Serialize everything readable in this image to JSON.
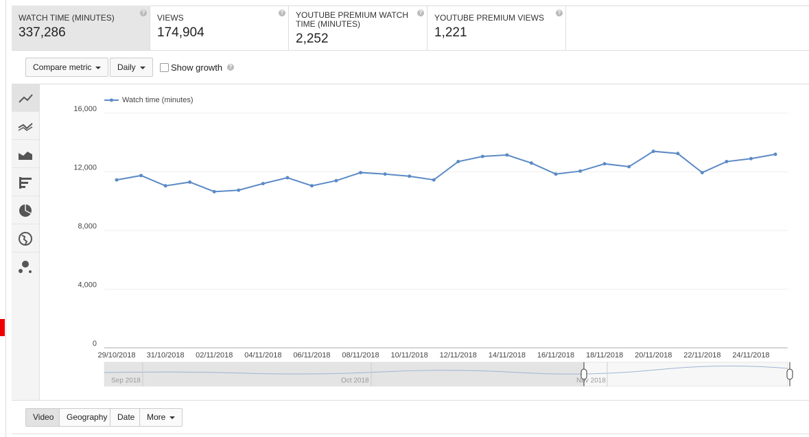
{
  "metrics": [
    {
      "label": "WATCH TIME (MINUTES)",
      "value": "337,286"
    },
    {
      "label": "VIEWS",
      "value": "174,904"
    },
    {
      "label": "YOUTUBE PREMIUM WATCH TIME (MINUTES)",
      "value": "2,252"
    },
    {
      "label": "YOUTUBE PREMIUM VIEWS",
      "value": "1,221"
    }
  ],
  "controls": {
    "compare_metric": "Compare metric",
    "interval": "Daily",
    "show_growth": "Show growth"
  },
  "chart_data": {
    "type": "line",
    "categories": [
      "29/10/2018",
      null,
      "31/10/2018",
      null,
      "02/11/2018",
      null,
      "04/11/2018",
      null,
      "06/11/2018",
      null,
      "08/11/2018",
      null,
      "10/11/2018",
      null,
      "12/11/2018",
      null,
      "14/11/2018",
      null,
      "16/11/2018",
      null,
      "18/11/2018",
      null,
      "20/11/2018",
      null,
      "22/11/2018",
      null,
      "24/11/2018",
      null
    ],
    "series": [
      {
        "name": "Watch time (minutes)",
        "color": "#5b8ac6",
        "values": [
          11450,
          11750,
          11050,
          11300,
          10650,
          10750,
          11200,
          11600,
          11050,
          11400,
          11950,
          11850,
          11700,
          11450,
          12700,
          13050,
          13150,
          12600,
          11850,
          12050,
          12550,
          12350,
          13400,
          13250,
          11950,
          12700,
          12900,
          13200
        ]
      }
    ],
    "ylim": [
      0,
      16000
    ],
    "yticks": [
      0,
      {
        "value": 4000,
        "label": "4,000"
      },
      {
        "value": 8000,
        "label": "8,000"
      },
      {
        "value": 12000,
        "label": "12,000"
      },
      {
        "value": 16000,
        "label": "16,000"
      }
    ],
    "grid": true,
    "navigator_labels": [
      "Sep 2018",
      "Oct 2018",
      "Nov 2018"
    ]
  },
  "tabs": [
    "Video",
    "Geography",
    "Date",
    "More"
  ]
}
